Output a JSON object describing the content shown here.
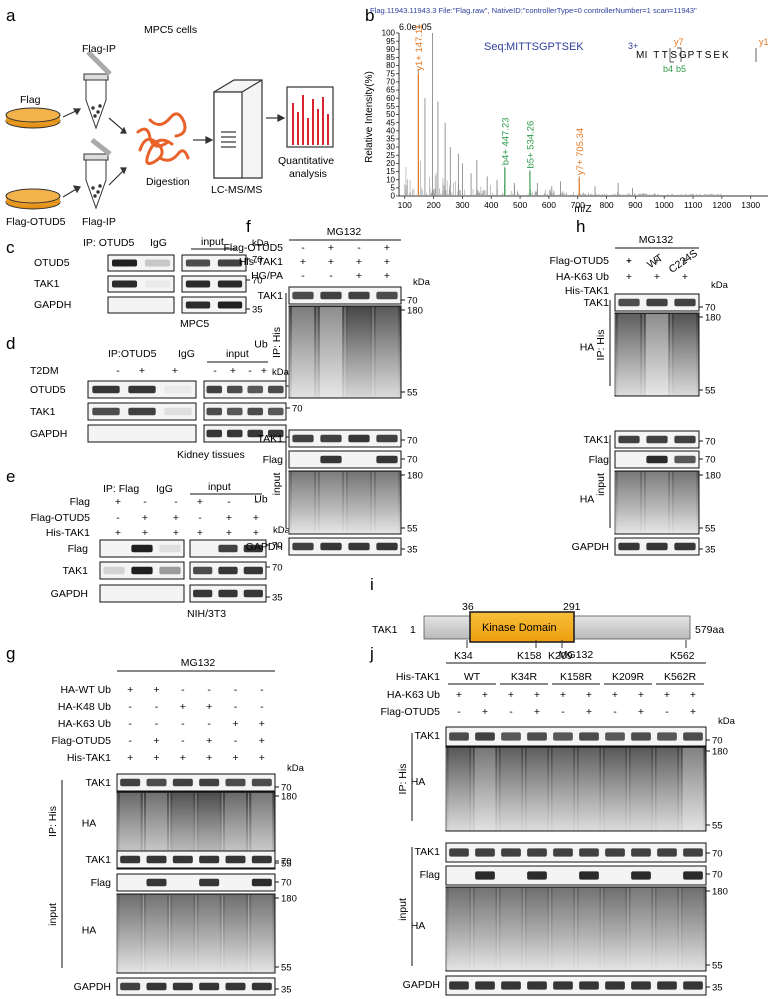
{
  "panel_letters": [
    "a",
    "b",
    "c",
    "d",
    "e",
    "f",
    "g",
    "h",
    "i",
    "j"
  ],
  "colors": {
    "orange": "#f0a21a",
    "dark_band": "#1a1a1a",
    "blue": "#2f3f9e",
    "ion_orange": "#e4761f",
    "ion_green": "#2f9a4b",
    "bar_red": "#d9232e",
    "protein_gray": "#cfcfcf"
  },
  "a": {
    "title": "MPC5 cells",
    "flag": "Flag",
    "flag_otud5": "Flag-OTUD5",
    "flag_ip_top": "Flag-IP",
    "flag_ip_bottom": "Flag-IP",
    "digestion": "Digestion",
    "lcms": "LC-MS/MS",
    "quant1": "Quantitative",
    "quant2": "analysis"
  },
  "b": {
    "header": "Flag.11943.11943.3 File:\"Flag.raw\", NativeID:\"controllerType=0 controllerNumber=1 scan=11943\"",
    "max": "6.0e+05",
    "seq_label": "Seq:",
    "seq": "MITTSGPTSEK",
    "ylabel": "Relative Intensity(%)",
    "xlabel": "m/Z",
    "yticks": [
      "0",
      "5",
      "10",
      "15",
      "20",
      "25",
      "30",
      "35",
      "40",
      "45",
      "50",
      "55",
      "60",
      "65",
      "70",
      "75",
      "80",
      "85",
      "90",
      "95",
      "100"
    ],
    "xticks": [
      "100",
      "200",
      "300",
      "400",
      "500",
      "600",
      "700",
      "800",
      "900",
      "1000",
      "1100",
      "1200",
      "1300"
    ],
    "peaks": [
      {
        "label": "y1+ 147.11",
        "mz": 147.11,
        "color": "orange"
      },
      {
        "label": "b4+ 447.23",
        "mz": 447.23,
        "color": "green"
      },
      {
        "label": "b5+ 534.26",
        "mz": 534.26,
        "color": "green"
      },
      {
        "label": "y7+ 705.34",
        "mz": 705.34,
        "color": "orange"
      }
    ],
    "frag": {
      "charge": "3+",
      "letters": [
        "M",
        "I",
        "T",
        "T",
        "S",
        "G",
        "P",
        "T",
        "S",
        "E",
        "K"
      ],
      "y7": "y7",
      "y1": "y1",
      "b4": "b4",
      "b5": "b5"
    }
  },
  "c": {
    "ip": "IP:  OTUD5",
    "igg": "IgG",
    "input": "input",
    "kda": "kDa",
    "rows": [
      "OTUD5",
      "TAK1",
      "GAPDH"
    ],
    "mw": [
      "70",
      "70",
      "35"
    ],
    "caption": "MPC5"
  },
  "d": {
    "ip": "IP:OTUD5",
    "igg": "IgG",
    "input": "input",
    "kda": "kDa",
    "t2dm": "T2DM",
    "signs": [
      "-",
      "+",
      "+",
      "-",
      "+",
      "-",
      "+"
    ],
    "rows": [
      "OTUD5",
      "TAK1",
      "GAPDH"
    ],
    "mw": [
      "70",
      "70",
      "35"
    ],
    "caption": "Kidney tissues"
  },
  "e": {
    "ip": "IP: Flag",
    "igg": "IgG",
    "input": "input",
    "kda": "kDa",
    "conds": [
      "Flag",
      "Flag-OTUD5",
      "His-TAK1"
    ],
    "signs": [
      [
        "+",
        "-",
        "-",
        "+",
        "-",
        "-"
      ],
      [
        "-",
        "+",
        "+",
        "-",
        "+",
        "+"
      ],
      [
        "+",
        "+",
        "+",
        "+",
        "+",
        "+"
      ]
    ],
    "rows": [
      "Flag",
      "TAK1",
      "GAPDH"
    ],
    "mw": [
      "70",
      "70",
      "35"
    ],
    "caption": "NIH/3T3"
  },
  "f": {
    "mg132": "MG132",
    "conds": [
      "Flag-OTUD5",
      "His-TAK1",
      "HG/PA"
    ],
    "signs": [
      [
        "-",
        "+",
        "-",
        "+"
      ],
      [
        "+",
        "+",
        "+",
        "+"
      ],
      [
        "-",
        "-",
        "+",
        "+"
      ]
    ],
    "kda": "kDa",
    "ip": "IP: His",
    "input": "input",
    "rows_ip": [
      "TAK1",
      "Ub"
    ],
    "rows_in": [
      "TAK1",
      "Flag",
      "Ub",
      "GAPDH"
    ],
    "mw": [
      "70",
      "180",
      "55",
      "70",
      "70",
      "180",
      "55",
      "35"
    ]
  },
  "g": {
    "mg132": "MG132",
    "conds": [
      "HA-WT Ub",
      "HA-K48 Ub",
      "HA-K63 Ub",
      "Flag-OTUD5",
      "His-TAK1"
    ],
    "signs": [
      [
        "+",
        "+",
        "-",
        "-",
        "-",
        "-"
      ],
      [
        "-",
        "-",
        "+",
        "+",
        "-",
        "-"
      ],
      [
        "-",
        "-",
        "-",
        "-",
        "+",
        "+"
      ],
      [
        "-",
        "+",
        "-",
        "+",
        "-",
        "+"
      ],
      [
        "+",
        "+",
        "+",
        "+",
        "+",
        "+"
      ]
    ],
    "kda": "kDa",
    "ip": "IP: His",
    "input": "input",
    "rows_ip": [
      "TAK1",
      "HA"
    ],
    "rows_in": [
      "TAK1",
      "Flag",
      "HA",
      "GAPDH"
    ],
    "mw": [
      "70",
      "180",
      "55",
      "70",
      "70",
      "180",
      "55",
      "35"
    ]
  },
  "h": {
    "mg132": "MG132",
    "conds": [
      "Flag-OTUD5",
      "HA-K63 Ub",
      "His-TAK1"
    ],
    "col_labels": [
      "-",
      "WT",
      "C224S"
    ],
    "signs": [
      [
        "+",
        "+",
        "+"
      ],
      [
        "+",
        "+",
        "+"
      ]
    ],
    "kda": "kDa",
    "ip": "IP: His",
    "input": "input",
    "rows_ip": [
      "TAK1",
      "HA"
    ],
    "rows_in": [
      "TAK1",
      "Flag",
      "HA",
      "GAPDH"
    ],
    "mw": [
      "70",
      "180",
      "55",
      "70",
      "70",
      "180",
      "55",
      "35"
    ]
  },
  "i": {
    "protein": "TAK1",
    "start": "1",
    "end": "579aa",
    "domain": "Kinase Domain",
    "d_start": "36",
    "d_end": "291",
    "sites": [
      "K34",
      "K158",
      "K209",
      "K562"
    ]
  },
  "j": {
    "mg132": "MG132",
    "his": "His-TAK1",
    "variants": [
      "WT",
      "K34R",
      "K158R",
      "K209R",
      "K562R"
    ],
    "conds": [
      "HA-K63 Ub",
      "Flag-OTUD5"
    ],
    "signs": [
      [
        "+",
        "+",
        "+",
        "+",
        "+",
        "+",
        "+",
        "+",
        "+",
        "+"
      ],
      [
        "-",
        "+",
        "-",
        "+",
        "-",
        "+",
        "-",
        "+",
        "-",
        "+"
      ]
    ],
    "kda": "kDa",
    "ip": "IP: His",
    "input": "input",
    "rows_ip": [
      "TAK1",
      "HA"
    ],
    "rows_in": [
      "TAK1",
      "Flag",
      "HA",
      "GAPDH"
    ],
    "mw": [
      "70",
      "180",
      "55",
      "70",
      "70",
      "180",
      "55",
      "35"
    ]
  }
}
